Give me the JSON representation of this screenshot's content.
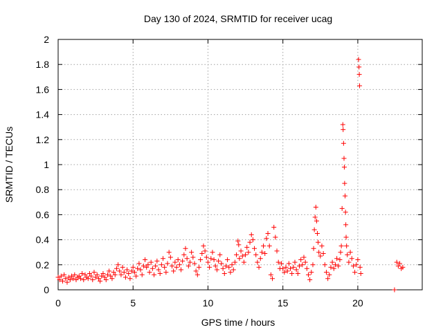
{
  "chart_data": {
    "type": "scatter",
    "title": "Day 130 of 2024, SRMTID for receiver ucag",
    "xlabel": "GPS time / hours",
    "ylabel": "SRMTID / TECUs",
    "xlim": [
      0,
      24.3
    ],
    "ylim": [
      0,
      2
    ],
    "x_ticks": [
      0,
      5,
      10,
      15,
      20
    ],
    "x_tick_labels": [
      "0",
      "5",
      "10",
      "15",
      "20"
    ],
    "y_ticks": [
      0,
      0.2,
      0.4,
      0.6,
      0.8,
      1,
      1.2,
      1.4,
      1.6,
      1.8,
      2
    ],
    "y_tick_labels": [
      "0",
      "0.2",
      "0.4",
      "0.6",
      "0.8",
      "1",
      "1.2",
      "1.4",
      "1.6",
      "1.8",
      "2"
    ],
    "grid": true,
    "marker": "+",
    "color": "#ff0000",
    "series": [
      {
        "name": "SRMTID",
        "points": [
          [
            0.0,
            0.1
          ],
          [
            0.1,
            0.08
          ],
          [
            0.2,
            0.11
          ],
          [
            0.3,
            0.07
          ],
          [
            0.4,
            0.12
          ],
          [
            0.5,
            0.09
          ],
          [
            0.6,
            0.06
          ],
          [
            0.7,
            0.1
          ],
          [
            0.8,
            0.08
          ],
          [
            0.9,
            0.11
          ],
          [
            1.0,
            0.09
          ],
          [
            1.1,
            0.12
          ],
          [
            1.2,
            0.08
          ],
          [
            1.3,
            0.1
          ],
          [
            1.4,
            0.11
          ],
          [
            1.5,
            0.09
          ],
          [
            1.6,
            0.13
          ],
          [
            1.7,
            0.08
          ],
          [
            1.8,
            0.12
          ],
          [
            1.9,
            0.1
          ],
          [
            2.0,
            0.09
          ],
          [
            2.1,
            0.13
          ],
          [
            2.2,
            0.11
          ],
          [
            2.3,
            0.08
          ],
          [
            2.4,
            0.14
          ],
          [
            2.5,
            0.1
          ],
          [
            2.6,
            0.12
          ],
          [
            2.7,
            0.09
          ],
          [
            2.8,
            0.07
          ],
          [
            2.9,
            0.11
          ],
          [
            3.0,
            0.13
          ],
          [
            3.1,
            0.1
          ],
          [
            3.2,
            0.08
          ],
          [
            3.3,
            0.12
          ],
          [
            3.4,
            0.15
          ],
          [
            3.5,
            0.11
          ],
          [
            3.6,
            0.09
          ],
          [
            3.7,
            0.14
          ],
          [
            3.8,
            0.12
          ],
          [
            3.9,
            0.17
          ],
          [
            4.0,
            0.2
          ],
          [
            4.1,
            0.15
          ],
          [
            4.2,
            0.12
          ],
          [
            4.3,
            0.18
          ],
          [
            4.4,
            0.14
          ],
          [
            4.5,
            0.1
          ],
          [
            4.6,
            0.16
          ],
          [
            4.7,
            0.13
          ],
          [
            4.8,
            0.09
          ],
          [
            4.9,
            0.15
          ],
          [
            5.0,
            0.18
          ],
          [
            5.1,
            0.14
          ],
          [
            5.2,
            0.11
          ],
          [
            5.3,
            0.17
          ],
          [
            5.4,
            0.21
          ],
          [
            5.5,
            0.16
          ],
          [
            5.6,
            0.12
          ],
          [
            5.7,
            0.19
          ],
          [
            5.8,
            0.24
          ],
          [
            5.9,
            0.18
          ],
          [
            6.0,
            0.2
          ],
          [
            6.1,
            0.14
          ],
          [
            6.2,
            0.22
          ],
          [
            6.3,
            0.17
          ],
          [
            6.4,
            0.12
          ],
          [
            6.5,
            0.19
          ],
          [
            6.6,
            0.23
          ],
          [
            6.7,
            0.16
          ],
          [
            6.8,
            0.13
          ],
          [
            6.9,
            0.2
          ],
          [
            7.0,
            0.25
          ],
          [
            7.1,
            0.18
          ],
          [
            7.2,
            0.14
          ],
          [
            7.3,
            0.21
          ],
          [
            7.4,
            0.3
          ],
          [
            7.5,
            0.26
          ],
          [
            7.6,
            0.19
          ],
          [
            7.7,
            0.15
          ],
          [
            7.8,
            0.22
          ],
          [
            7.9,
            0.18
          ],
          [
            8.0,
            0.24
          ],
          [
            8.1,
            0.2
          ],
          [
            8.2,
            0.16
          ],
          [
            8.3,
            0.23
          ],
          [
            8.4,
            0.28
          ],
          [
            8.5,
            0.33
          ],
          [
            8.6,
            0.25
          ],
          [
            8.7,
            0.19
          ],
          [
            8.8,
            0.22
          ],
          [
            8.9,
            0.3
          ],
          [
            9.0,
            0.26
          ],
          [
            9.1,
            0.21
          ],
          [
            9.2,
            0.15
          ],
          [
            9.3,
            0.12
          ],
          [
            9.4,
            0.18
          ],
          [
            9.5,
            0.24
          ],
          [
            9.6,
            0.29
          ],
          [
            9.7,
            0.35
          ],
          [
            9.8,
            0.31
          ],
          [
            9.9,
            0.26
          ],
          [
            10.0,
            0.22
          ],
          [
            10.1,
            0.18
          ],
          [
            10.2,
            0.25
          ],
          [
            10.3,
            0.3
          ],
          [
            10.4,
            0.24
          ],
          [
            10.5,
            0.19
          ],
          [
            10.6,
            0.16
          ],
          [
            10.7,
            0.23
          ],
          [
            10.8,
            0.28
          ],
          [
            10.9,
            0.21
          ],
          [
            11.0,
            0.17
          ],
          [
            11.1,
            0.13
          ],
          [
            11.2,
            0.19
          ],
          [
            11.3,
            0.24
          ],
          [
            11.4,
            0.18
          ],
          [
            11.5,
            0.14
          ],
          [
            11.6,
            0.2
          ],
          [
            11.7,
            0.16
          ],
          [
            11.8,
            0.22
          ],
          [
            11.9,
            0.28
          ],
          [
            12.0,
            0.39
          ],
          [
            12.05,
            0.36
          ],
          [
            12.1,
            0.25
          ],
          [
            12.2,
            0.31
          ],
          [
            12.3,
            0.27
          ],
          [
            12.4,
            0.22
          ],
          [
            12.5,
            0.28
          ],
          [
            12.6,
            0.34
          ],
          [
            12.7,
            0.3
          ],
          [
            12.8,
            0.38
          ],
          [
            12.9,
            0.44
          ],
          [
            13.0,
            0.4
          ],
          [
            13.1,
            0.33
          ],
          [
            13.2,
            0.28
          ],
          [
            13.3,
            0.22
          ],
          [
            13.4,
            0.18
          ],
          [
            13.5,
            0.25
          ],
          [
            13.6,
            0.3
          ],
          [
            13.7,
            0.35
          ],
          [
            13.8,
            0.29
          ],
          [
            13.9,
            0.41
          ],
          [
            14.0,
            0.45
          ],
          [
            14.1,
            0.35
          ],
          [
            14.2,
            0.12
          ],
          [
            14.3,
            0.09
          ],
          [
            14.4,
            0.5
          ],
          [
            14.5,
            0.42
          ],
          [
            14.6,
            0.31
          ],
          [
            14.7,
            0.22
          ],
          [
            14.8,
            0.17
          ],
          [
            14.9,
            0.21
          ],
          [
            15.0,
            0.17
          ],
          [
            15.1,
            0.14
          ],
          [
            15.2,
            0.18
          ],
          [
            15.3,
            0.15
          ],
          [
            15.4,
            0.21
          ],
          [
            15.5,
            0.17
          ],
          [
            15.6,
            0.13
          ],
          [
            15.7,
            0.18
          ],
          [
            15.8,
            0.22
          ],
          [
            15.9,
            0.16
          ],
          [
            16.0,
            0.13
          ],
          [
            16.1,
            0.19
          ],
          [
            16.2,
            0.24
          ],
          [
            16.3,
            0.2
          ],
          [
            16.4,
            0.26
          ],
          [
            16.5,
            0.22
          ],
          [
            16.6,
            0.17
          ],
          [
            16.7,
            0.12
          ],
          [
            16.8,
            0.08
          ],
          [
            16.9,
            0.14
          ],
          [
            17.0,
            0.2
          ],
          [
            17.05,
            0.33
          ],
          [
            17.1,
            0.48
          ],
          [
            17.15,
            0.58
          ],
          [
            17.2,
            0.66
          ],
          [
            17.25,
            0.55
          ],
          [
            17.3,
            0.45
          ],
          [
            17.35,
            0.38
          ],
          [
            17.4,
            0.3
          ],
          [
            17.5,
            0.27
          ],
          [
            17.6,
            0.35
          ],
          [
            17.7,
            0.29
          ],
          [
            17.8,
            0.2
          ],
          [
            17.9,
            0.14
          ],
          [
            18.0,
            0.09
          ],
          [
            18.1,
            0.12
          ],
          [
            18.2,
            0.18
          ],
          [
            18.3,
            0.22
          ],
          [
            18.4,
            0.17
          ],
          [
            18.5,
            0.2
          ],
          [
            18.6,
            0.25
          ],
          [
            18.7,
            0.19
          ],
          [
            18.8,
            0.24
          ],
          [
            18.85,
            0.3
          ],
          [
            18.9,
            0.35
          ],
          [
            18.95,
            0.65
          ],
          [
            19.0,
            1.32
          ],
          [
            19.02,
            1.28
          ],
          [
            19.05,
            1.17
          ],
          [
            19.08,
            1.05
          ],
          [
            19.1,
            0.98
          ],
          [
            19.12,
            0.85
          ],
          [
            19.15,
            0.75
          ],
          [
            19.18,
            0.62
          ],
          [
            19.2,
            0.52
          ],
          [
            19.22,
            0.42
          ],
          [
            19.25,
            0.35
          ],
          [
            19.3,
            0.28
          ],
          [
            19.4,
            0.22
          ],
          [
            19.5,
            0.3
          ],
          [
            19.6,
            0.25
          ],
          [
            19.7,
            0.19
          ],
          [
            19.8,
            0.14
          ],
          [
            19.9,
            0.2
          ],
          [
            20.0,
            0.24
          ],
          [
            20.05,
            1.84
          ],
          [
            20.08,
            1.78
          ],
          [
            20.1,
            1.72
          ],
          [
            20.12,
            1.63
          ],
          [
            20.15,
            0.18
          ],
          [
            20.2,
            0.13
          ],
          [
            22.45,
            0.0
          ],
          [
            22.6,
            0.22
          ],
          [
            22.7,
            0.19
          ],
          [
            22.8,
            0.21
          ],
          [
            22.9,
            0.17
          ],
          [
            23.0,
            0.18
          ]
        ]
      }
    ]
  }
}
